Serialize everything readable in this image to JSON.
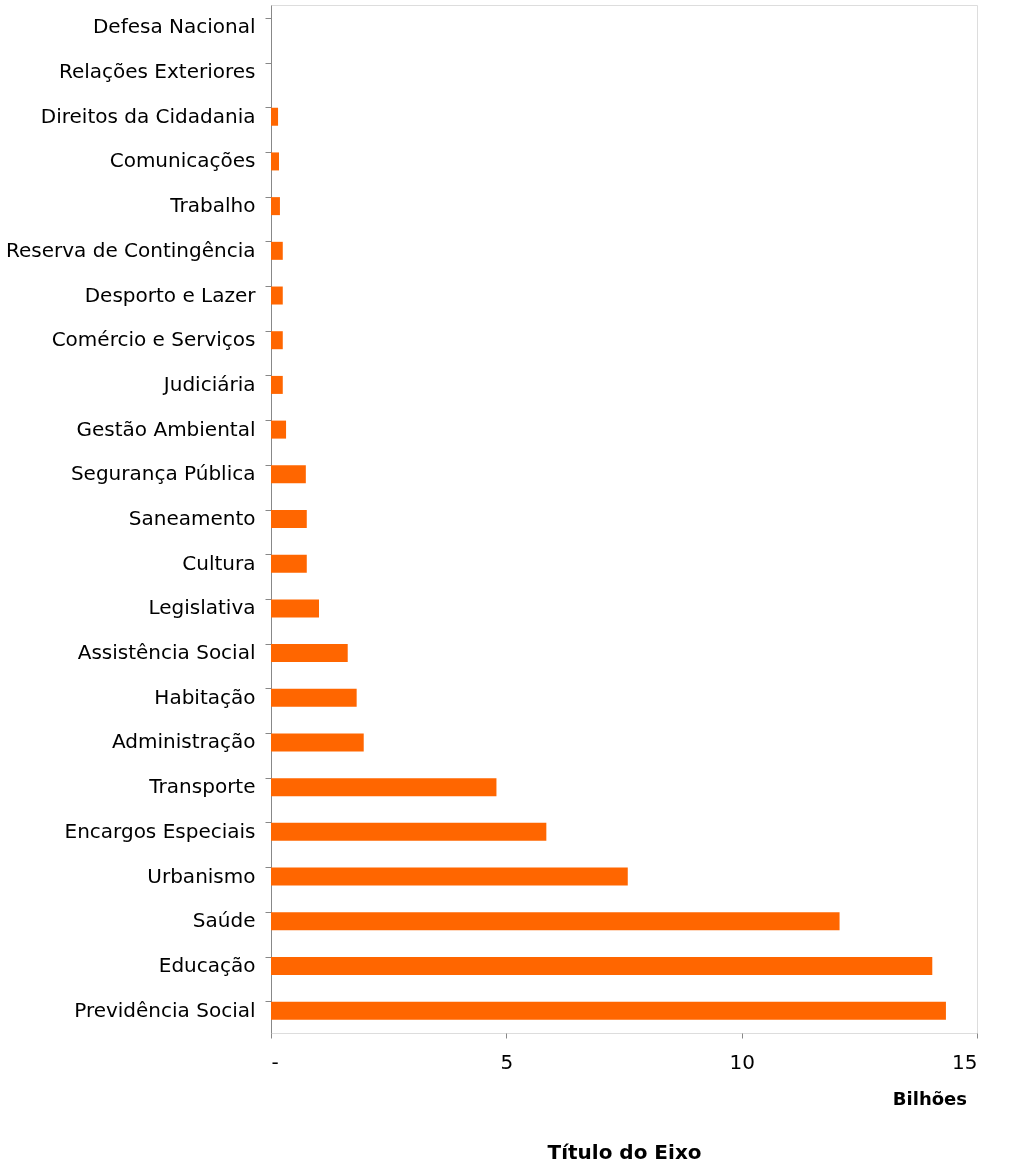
{
  "chart_data": {
    "type": "bar",
    "orientation": "horizontal",
    "xlabel": "Título do Eixo",
    "annotations": [
      "Bilhões"
    ],
    "categories": [
      "Defesa Nacional",
      "Relações Exteriores",
      "Direitos da Cidadania",
      "Comunicações",
      "Trabalho",
      "Reserva de Contingência",
      "Desporto e Lazer",
      "Comércio e Serviços",
      "Judiciária",
      "Gestão Ambiental",
      "Segurança Pública",
      "Saneamento",
      "Cultura",
      "Legislativa",
      "Assistência Social",
      "Habitação",
      "Administração",
      "Transporte",
      "Encargos Especiais",
      "Urbanismo",
      "Saúde",
      "Educação",
      "Previdência Social"
    ],
    "series": [
      {
        "color": "#ff6600",
        "values": [
          0,
          0,
          0.15,
          0.17,
          0.19,
          0.25,
          0.25,
          0.25,
          0.25,
          0.32,
          0.74,
          0.76,
          0.76,
          1.02,
          1.63,
          1.82,
          1.97,
          4.79,
          5.85,
          7.58,
          12.08,
          14.05,
          14.34
        ]
      }
    ],
    "xlim": [
      0,
      15
    ],
    "xticks": [
      {
        "value": 0,
        "label": "-"
      },
      5,
      10,
      15
    ],
    "grid": false,
    "legend": false
  }
}
